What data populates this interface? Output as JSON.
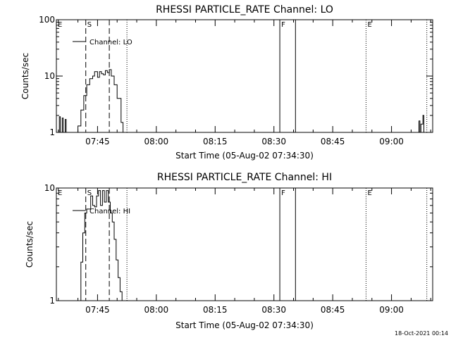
{
  "colors": {
    "background": "#ffffff",
    "foreground": "#000000"
  },
  "footer": {
    "timestamp": "18-Oct-2021 00:14"
  },
  "chart_data": [
    {
      "type": "line",
      "title": "RHESSI PARTICLE_RATE Channel: LO",
      "xlabel": "Start Time (05-Aug-02 07:34:30)",
      "ylabel": "Counts/sec",
      "xscale": "time",
      "yscale": "log",
      "xlim": [
        "07:34:30",
        "09:10:30"
      ],
      "ylim": [
        1,
        100
      ],
      "x_ticks": [
        "07:45",
        "08:00",
        "08:15",
        "08:30",
        "08:45",
        "09:00"
      ],
      "y_ticks": [
        "1",
        "10",
        "100"
      ],
      "legend": {
        "position": "top-left",
        "entries": [
          "Channel: LO"
        ]
      },
      "series": [
        {
          "name": "Channel: LO",
          "segments": [
            {
              "x": [
                "07:35:00",
                "07:35:15",
                "07:35:30",
                "07:35:45",
                "07:36:00",
                "07:36:15",
                "07:36:30",
                "07:36:45",
                "07:37:00"
              ],
              "y": [
                1,
                1.9,
                1,
                1,
                1.8,
                1,
                1,
                1.7,
                1
              ]
            },
            {
              "x": [
                "07:39:45",
                "07:40:00",
                "07:40:45",
                "07:41:30",
                "07:42:15",
                "07:43:00",
                "07:43:45",
                "07:44:15",
                "07:45:00",
                "07:45:30",
                "07:46:00",
                "07:46:30",
                "07:47:00",
                "07:47:30",
                "07:48:00",
                "07:48:30",
                "07:49:15",
                "07:50:00",
                "07:51:00",
                "07:51:30"
              ],
              "y": [
                1,
                1.3,
                2.5,
                4.5,
                7,
                9,
                10,
                12,
                9.5,
                12,
                11,
                10.5,
                12.5,
                11.5,
                13,
                10,
                7,
                4,
                1.5,
                1
              ]
            },
            {
              "x": [
                "09:06:30",
                "09:07:00",
                "09:07:15",
                "09:07:30",
                "09:08:00",
                "09:08:15",
                "09:08:30"
              ],
              "y": [
                1,
                1.6,
                1,
                1.4,
                2.0,
                1,
                1
              ]
            }
          ]
        }
      ],
      "annotations": [
        {
          "label": "E",
          "x": "07:34:30",
          "style": "marker"
        },
        {
          "label": "S",
          "x": "07:42:00",
          "style": "dashed"
        },
        {
          "label": "",
          "x": "07:48:00",
          "style": "dashed"
        },
        {
          "label": "",
          "x": "07:52:30",
          "style": "dotted"
        },
        {
          "label": "F",
          "x": "08:31:30",
          "style": "solid"
        },
        {
          "label": "",
          "x": "08:35:30",
          "style": "solid"
        },
        {
          "label": "E",
          "x": "08:53:30",
          "style": "dotted"
        },
        {
          "label": "",
          "x": "09:09:00",
          "style": "dotted"
        }
      ]
    },
    {
      "type": "line",
      "title": "RHESSI PARTICLE_RATE Channel: HI",
      "xlabel": "Start Time (05-Aug-02 07:34:30)",
      "ylabel": "Counts/sec",
      "xscale": "time",
      "yscale": "log",
      "xlim": [
        "07:34:30",
        "09:10:30"
      ],
      "ylim": [
        1,
        10
      ],
      "x_ticks": [
        "07:45",
        "08:00",
        "08:15",
        "08:30",
        "08:45",
        "09:00"
      ],
      "y_ticks": [
        "1",
        "10"
      ],
      "legend": {
        "position": "top-left",
        "entries": [
          "Channel: HI"
        ]
      },
      "series": [
        {
          "name": "Channel: HI",
          "segments": [
            {
              "x": [
                "07:40:00",
                "07:40:45",
                "07:41:15",
                "07:41:45",
                "07:42:15",
                "07:42:45",
                "07:43:15",
                "07:43:45",
                "07:44:15",
                "07:44:45",
                "07:45:15",
                "07:45:45",
                "07:46:15",
                "07:46:45",
                "07:47:15",
                "07:47:45",
                "07:48:15",
                "07:48:45",
                "07:49:15",
                "07:49:45",
                "07:50:15",
                "07:50:45",
                "07:51:15"
              ],
              "y": [
                1,
                2.2,
                4,
                6,
                6.5,
                6.5,
                8.5,
                7,
                6.8,
                8.5,
                9.5,
                7,
                9.5,
                7.5,
                9.5,
                7.5,
                6,
                5,
                3.5,
                2.3,
                1.6,
                1.2,
                1
              ]
            }
          ]
        }
      ],
      "annotations": [
        {
          "label": "E",
          "x": "07:34:30",
          "style": "marker"
        },
        {
          "label": "S",
          "x": "07:42:00",
          "style": "dashed"
        },
        {
          "label": "",
          "x": "07:48:00",
          "style": "dashed"
        },
        {
          "label": "",
          "x": "07:52:30",
          "style": "dotted"
        },
        {
          "label": "F",
          "x": "08:31:30",
          "style": "solid"
        },
        {
          "label": "",
          "x": "08:35:30",
          "style": "solid"
        },
        {
          "label": "E",
          "x": "08:53:30",
          "style": "dotted"
        },
        {
          "label": "",
          "x": "09:09:00",
          "style": "dotted"
        }
      ]
    }
  ]
}
